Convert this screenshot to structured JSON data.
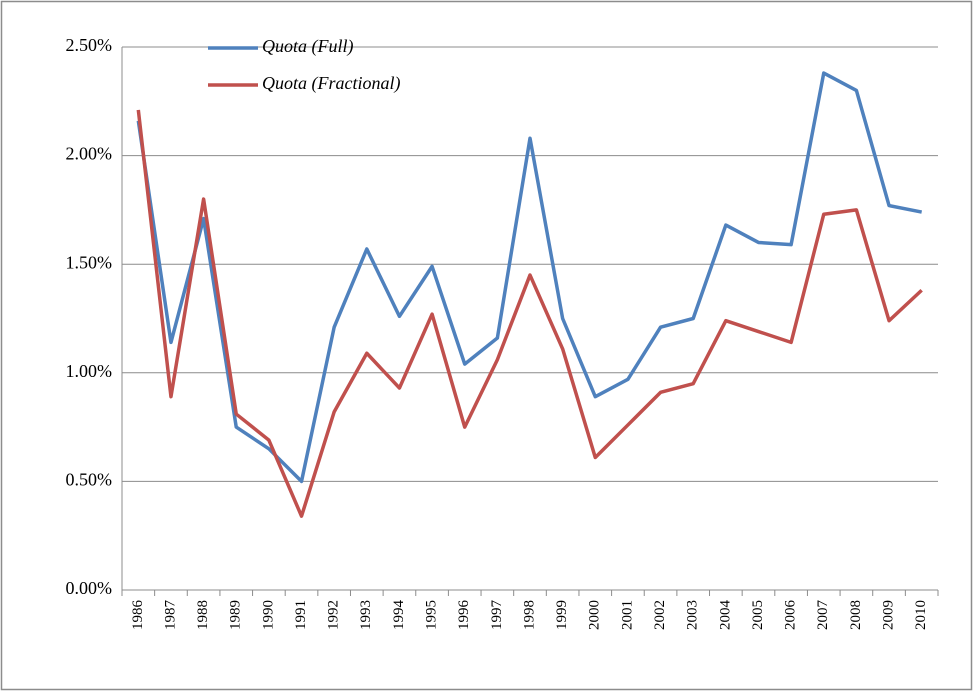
{
  "chart_data": {
    "type": "line",
    "categories": [
      "1986",
      "1987",
      "1988",
      "1989",
      "1990",
      "1991",
      "1992",
      "1993",
      "1994",
      "1995",
      "1996",
      "1997",
      "1998",
      "1999",
      "2000",
      "2001",
      "2002",
      "2003",
      "2004",
      "2005",
      "2006",
      "2007",
      "2008",
      "2009",
      "2010"
    ],
    "series": [
      {
        "name": "Quota (Full)",
        "color": "#4f81bd",
        "values": [
          2.16,
          1.14,
          1.71,
          0.75,
          0.65,
          0.5,
          1.21,
          1.57,
          1.26,
          1.49,
          1.04,
          1.16,
          2.08,
          1.25,
          0.89,
          0.97,
          1.21,
          1.25,
          1.68,
          1.6,
          1.59,
          2.38,
          2.3,
          1.77,
          1.74
        ]
      },
      {
        "name": "Quota (Fractional)",
        "color": "#c0504d",
        "values": [
          2.21,
          0.89,
          1.8,
          0.81,
          0.69,
          0.34,
          0.82,
          1.09,
          0.93,
          1.27,
          0.75,
          1.06,
          1.45,
          1.11,
          0.61,
          0.76,
          0.91,
          0.95,
          1.24,
          1.19,
          1.14,
          1.73,
          1.75,
          1.24,
          1.38
        ]
      }
    ],
    "ylim": [
      0,
      2.5
    ],
    "yticks": [
      {
        "value": 0,
        "label": "0.00%"
      },
      {
        "value": 0.5,
        "label": "0.50%"
      },
      {
        "value": 1,
        "label": "1.00%"
      },
      {
        "value": 1.5,
        "label": "1.50%"
      },
      {
        "value": 2,
        "label": "2.00%"
      },
      {
        "value": 2.5,
        "label": "2.50%"
      }
    ],
    "grid": true,
    "legend": "top-left"
  }
}
